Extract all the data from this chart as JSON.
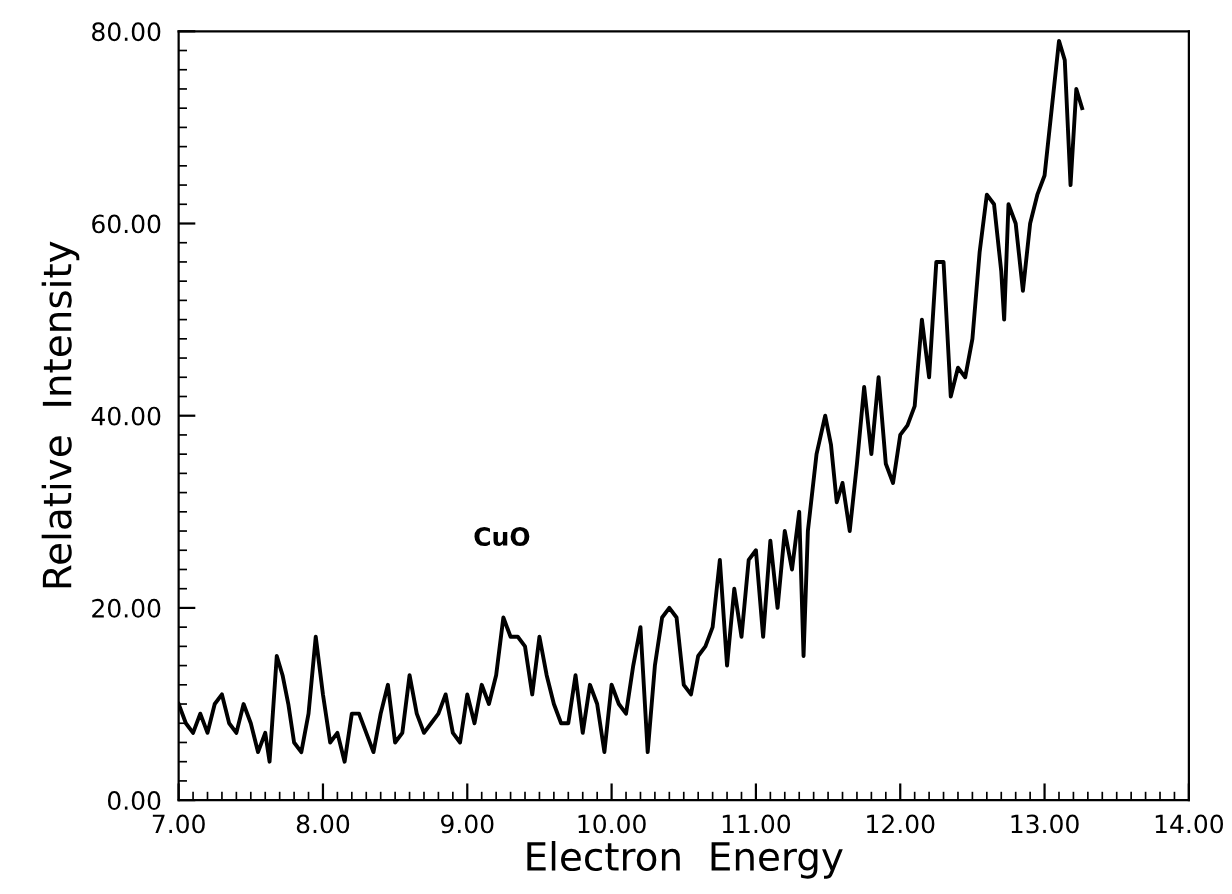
{
  "chart_data": {
    "type": "line",
    "xlabel": "Electron  Energy",
    "ylabel": "Relative  Intensity",
    "annotations": [
      "CuO"
    ],
    "series": [
      {
        "color": "#000000",
        "x": [
          7.0,
          7.05,
          7.1,
          7.15,
          7.2,
          7.25,
          7.3,
          7.35,
          7.4,
          7.45,
          7.5,
          7.55,
          7.6,
          7.63,
          7.68,
          7.72,
          7.76,
          7.8,
          7.85,
          7.9,
          7.95,
          8.0,
          8.05,
          8.1,
          8.15,
          8.2,
          8.25,
          8.3,
          8.35,
          8.4,
          8.45,
          8.5,
          8.55,
          8.6,
          8.65,
          8.7,
          8.75,
          8.8,
          8.85,
          8.9,
          8.95,
          9.0,
          9.05,
          9.1,
          9.15,
          9.2,
          9.25,
          9.3,
          9.35,
          9.4,
          9.45,
          9.5,
          9.55,
          9.6,
          9.65,
          9.7,
          9.75,
          9.8,
          9.85,
          9.9,
          9.95,
          10.0,
          10.05,
          10.1,
          10.15,
          10.2,
          10.25,
          10.3,
          10.35,
          10.4,
          10.45,
          10.5,
          10.55,
          10.6,
          10.65,
          10.7,
          10.75,
          10.8,
          10.85,
          10.9,
          10.95,
          11.0,
          11.05,
          11.1,
          11.15,
          11.2,
          11.25,
          11.3,
          11.33,
          11.36,
          11.42,
          11.48,
          11.52,
          11.56,
          11.6,
          11.65,
          11.7,
          11.75,
          11.8,
          11.85,
          11.9,
          11.95,
          12.0,
          12.05,
          12.1,
          12.15,
          12.2,
          12.25,
          12.3,
          12.35,
          12.4,
          12.45,
          12.5,
          12.55,
          12.6,
          12.65,
          12.7,
          12.72,
          12.75,
          12.8,
          12.85,
          12.9,
          12.95,
          13.0,
          13.05,
          13.1,
          13.14,
          13.18,
          13.22,
          13.26
        ],
        "values": [
          10,
          8,
          7,
          9,
          7,
          10,
          11,
          8,
          7,
          10,
          8,
          5,
          7,
          4,
          15,
          13,
          10,
          6,
          5,
          9,
          17,
          11,
          6,
          7,
          4,
          9,
          9,
          7,
          5,
          9,
          12,
          6,
          7,
          13,
          9,
          7,
          8,
          9,
          11,
          7,
          6,
          11,
          8,
          12,
          10,
          13,
          19,
          17,
          17,
          16,
          11,
          17,
          13,
          10,
          8,
          8,
          13,
          7,
          12,
          10,
          5,
          12,
          10,
          9,
          14,
          18,
          5,
          14,
          19,
          20,
          19,
          12,
          11,
          15,
          16,
          18,
          25,
          14,
          22,
          17,
          25,
          26,
          17,
          27,
          20,
          28,
          24,
          30,
          15,
          28,
          36,
          40,
          37,
          31,
          33,
          28,
          35,
          43,
          36,
          44,
          35,
          33,
          38,
          39,
          41,
          50,
          44,
          56,
          56,
          42,
          45,
          44,
          48,
          57,
          63,
          62,
          55,
          50,
          62,
          60,
          53,
          60,
          63,
          65,
          72,
          79,
          77,
          64,
          74,
          72
        ]
      }
    ],
    "xlim": [
      7.0,
      14.0
    ],
    "xticks": [
      {
        "value": 7,
        "label": "7.00"
      },
      {
        "value": 8,
        "label": "8.00"
      },
      {
        "value": 9,
        "label": "9.00"
      },
      {
        "value": 10,
        "label": "10.00"
      },
      {
        "value": 11,
        "label": "11.00"
      },
      {
        "value": 12,
        "label": "12.00"
      },
      {
        "value": 13,
        "label": "13.00"
      },
      {
        "value": 14,
        "label": "14.00"
      }
    ],
    "ylim": [
      0,
      80
    ],
    "yticks": [
      {
        "value": 0,
        "label": "0.00"
      },
      {
        "value": 20,
        "label": "20.00"
      },
      {
        "value": 40,
        "label": "40.00"
      },
      {
        "value": 60,
        "label": "60.00"
      },
      {
        "value": 80,
        "label": "80.00"
      }
    ],
    "grid": false,
    "legend": false
  }
}
